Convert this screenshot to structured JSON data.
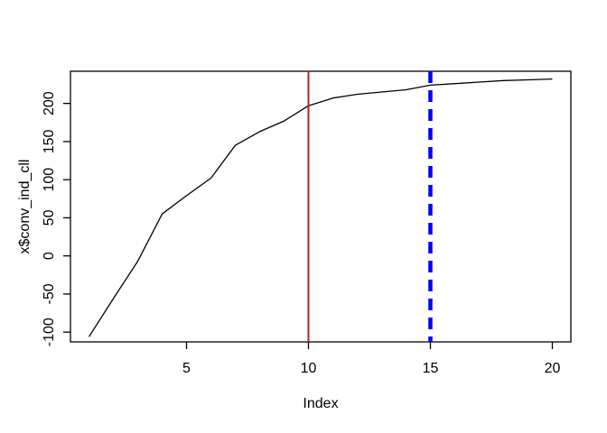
{
  "chart_data": {
    "type": "line",
    "xlabel": "Index",
    "ylabel": "x$conv_ind_cll",
    "x": [
      1,
      2,
      3,
      4,
      5,
      6,
      7,
      8,
      9,
      10,
      11,
      12,
      13,
      14,
      15,
      16,
      17,
      18,
      19,
      20
    ],
    "y": [
      -106,
      -56,
      -7,
      55,
      79,
      102,
      145,
      163,
      177,
      197,
      207,
      212,
      215,
      218,
      224,
      226,
      228,
      230,
      231,
      232
    ],
    "x_ticks": [
      5,
      10,
      15,
      20
    ],
    "y_ticks": [
      -100,
      -50,
      0,
      50,
      100,
      150,
      200
    ],
    "xlim": [
      0.24,
      20.76
    ],
    "ylim": [
      -112.8,
      242.2
    ],
    "grid": false,
    "legend_position": "none",
    "series_color": "#000000",
    "axis_color": "#000000",
    "background_color": "#ffffff",
    "vlines": [
      {
        "x": 10,
        "color": "#B22222",
        "style": "solid",
        "width": 2
      },
      {
        "x": 15,
        "color": "#0000FF",
        "style": "dashed",
        "width": 4.5
      }
    ]
  }
}
